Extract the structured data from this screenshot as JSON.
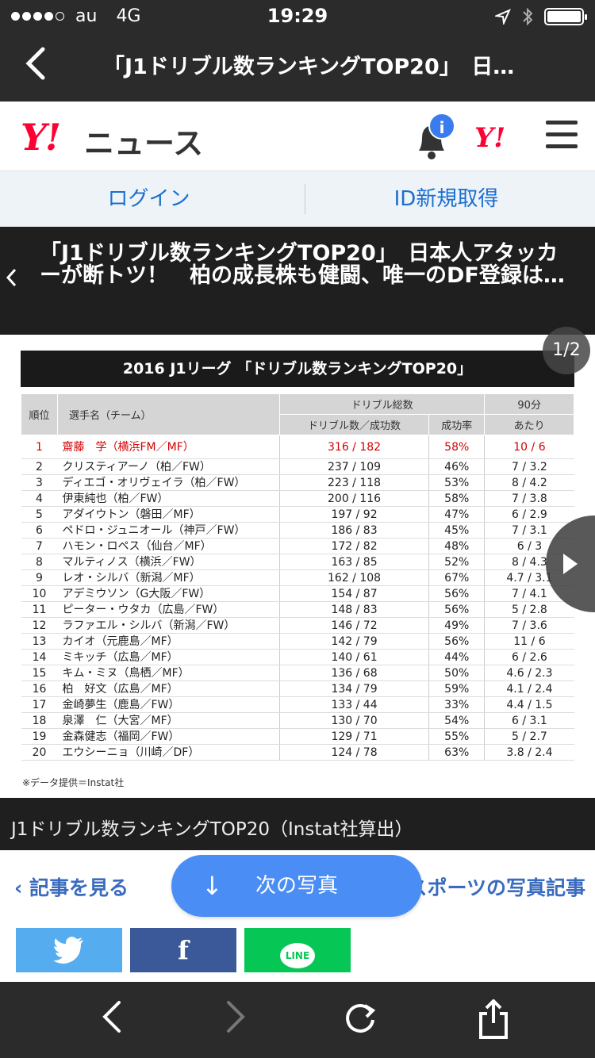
{
  "status": {
    "carrier": "au",
    "network": "4G",
    "time": "19:29"
  },
  "browser": {
    "title": "「J1ドリブル数ランキングTOP20」　日…"
  },
  "header": {
    "brand": "Y!",
    "service": "ニュース",
    "notice_badge": "i"
  },
  "auth": {
    "login": "ログイン",
    "register": "ID新規取得"
  },
  "article": {
    "title": "「J1ドリブル数ランキングTOP20」　日本人アタッカーが断トツ！　柏の成長株も健闘、唯一のDF登録は…",
    "photo_counter": "1/2",
    "caption": "J1ドリブル数ランキングTOP20（Instat社算出）"
  },
  "table": {
    "heading": "2016 J1リーグ 「ドリブル数ランキングTOP20」",
    "col_rank": "順位",
    "col_player": "選手名（チーム）",
    "col_dribble_group": "ドリブル総数",
    "col_count": "ドリブル数／成功数",
    "col_rate": "成功率",
    "col_per90_top": "90分",
    "col_per90_bottom": "あたり",
    "rows": [
      {
        "rank": "1",
        "player": "齋藤　学（横浜FM／MF）",
        "count": "316 / 182",
        "rate": "58%",
        "per90": "10 / 6"
      },
      {
        "rank": "2",
        "player": "クリスティアーノ（柏／FW）",
        "count": "237 / 109",
        "rate": "46%",
        "per90": "7 / 3.2"
      },
      {
        "rank": "3",
        "player": "ディエゴ・オリヴェイラ（柏／FW）",
        "count": "223 / 118",
        "rate": "53%",
        "per90": "8 / 4.2"
      },
      {
        "rank": "4",
        "player": "伊東純也（柏／FW）",
        "count": "200 / 116",
        "rate": "58%",
        "per90": "7 / 3.8"
      },
      {
        "rank": "5",
        "player": "アダイウトン（磐田／MF）",
        "count": "197 / 92",
        "rate": "47%",
        "per90": "6 / 2.9"
      },
      {
        "rank": "6",
        "player": "ペドロ・ジュニオール（神戸／FW）",
        "count": "186 / 83",
        "rate": "45%",
        "per90": "7 / 3.1"
      },
      {
        "rank": "7",
        "player": "ハモン・ロペス（仙台／MF）",
        "count": "172 / 82",
        "rate": "48%",
        "per90": "6 / 3"
      },
      {
        "rank": "8",
        "player": "マルティノス（横浜／FW）",
        "count": "163 / 85",
        "rate": "52%",
        "per90": "8 / 4.3"
      },
      {
        "rank": "9",
        "player": "レオ・シルバ（新潟／MF）",
        "count": "162 / 108",
        "rate": "67%",
        "per90": "4.7 / 3.1"
      },
      {
        "rank": "10",
        "player": "アデミウソン（G大阪／FW）",
        "count": "154 / 87",
        "rate": "56%",
        "per90": "7 / 4.1"
      },
      {
        "rank": "11",
        "player": "ピーター・ウタカ（広島／FW）",
        "count": "148 / 83",
        "rate": "56%",
        "per90": "5 / 2.8"
      },
      {
        "rank": "12",
        "player": "ラファエル・シルバ（新潟／FW）",
        "count": "146 / 72",
        "rate": "49%",
        "per90": "7 / 3.6"
      },
      {
        "rank": "13",
        "player": "カイオ（元鹿島／MF）",
        "count": "142 / 79",
        "rate": "56%",
        "per90": "11 / 6"
      },
      {
        "rank": "14",
        "player": "ミキッチ（広島／MF）",
        "count": "140 / 61",
        "rate": "44%",
        "per90": "6 / 2.6"
      },
      {
        "rank": "15",
        "player": "キム・ミヌ（鳥栖／MF）",
        "count": "136 / 68",
        "rate": "50%",
        "per90": "4.6 / 2.3"
      },
      {
        "rank": "16",
        "player": "柏　好文（広島／MF）",
        "count": "134 / 79",
        "rate": "59%",
        "per90": "4.1 / 2.4"
      },
      {
        "rank": "17",
        "player": "金崎夢生（鹿島／FW）",
        "count": "133 / 44",
        "rate": "33%",
        "per90": "4.4 / 1.5"
      },
      {
        "rank": "18",
        "player": "泉澤　仁（大宮／MF）",
        "count": "130 / 70",
        "rate": "54%",
        "per90": "6 / 3.1"
      },
      {
        "rank": "19",
        "player": "金森健志（福岡／FW）",
        "count": "129 / 71",
        "rate": "55%",
        "per90": "5 / 2.7"
      },
      {
        "rank": "20",
        "player": "エウシーニョ（川崎／DF）",
        "count": "124 / 78",
        "rate": "63%",
        "per90": "3.8 / 2.4"
      }
    ],
    "note": "※データ提供＝Instat社"
  },
  "actions": {
    "read_article": "記事を見る",
    "next_photo": "次の写真",
    "sports_photos": "スポーツの写真記事"
  },
  "share": {
    "facebook": "f",
    "line": "LINE"
  },
  "colors": {
    "yahoo_red": "#ff0033",
    "link_blue": "#1a6fd1",
    "next_button": "#4a8ef5",
    "twitter": "#55acee",
    "facebook": "#3b5998",
    "line": "#06c755"
  }
}
